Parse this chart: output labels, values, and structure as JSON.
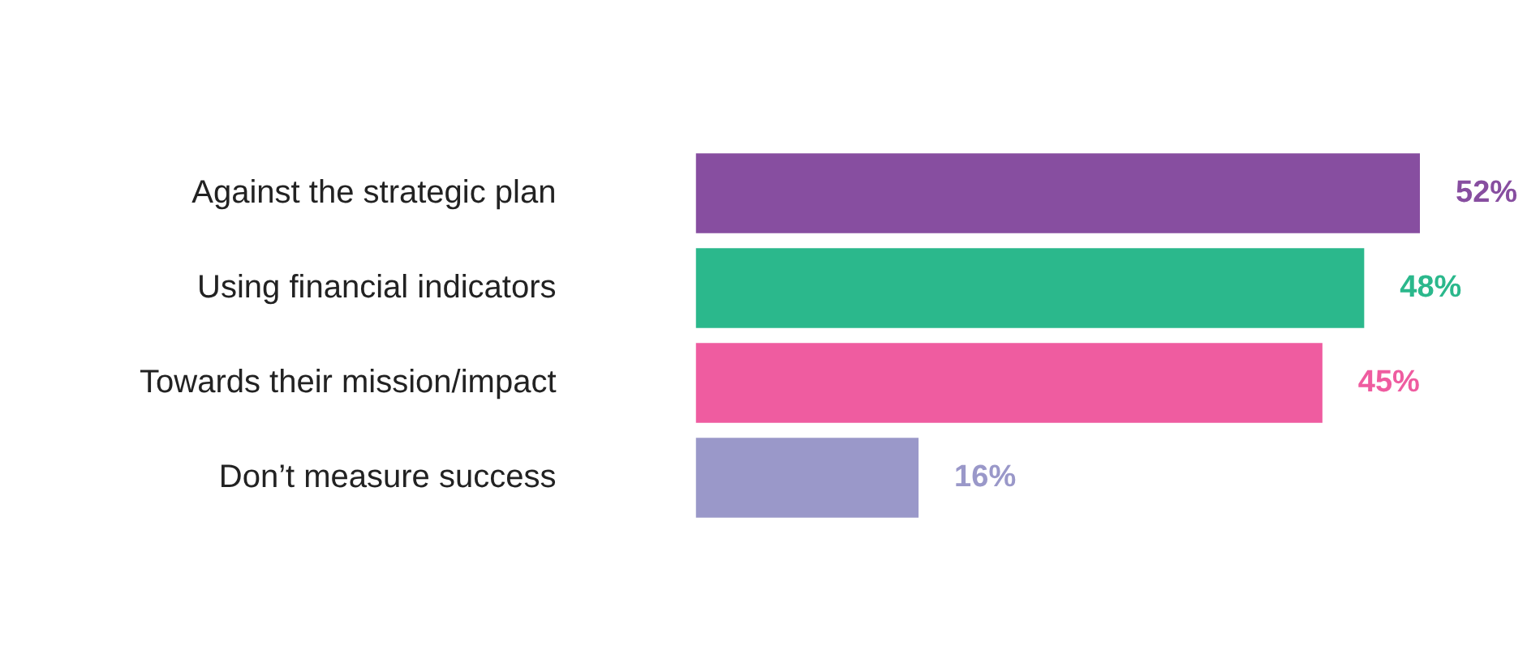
{
  "chart_data": {
    "type": "bar",
    "orientation": "horizontal",
    "categories": [
      "Against the strategic plan",
      "Using financial indicators",
      "Towards their mission/impact",
      "Don’t measure success"
    ],
    "values": [
      52,
      48,
      45,
      16
    ],
    "colors": [
      "#874ea0",
      "#2bb88c",
      "#ef5ca0",
      "#9a98c9"
    ],
    "value_labels": [
      "52%",
      "48%",
      "45%",
      "16%"
    ],
    "legend": false
  }
}
